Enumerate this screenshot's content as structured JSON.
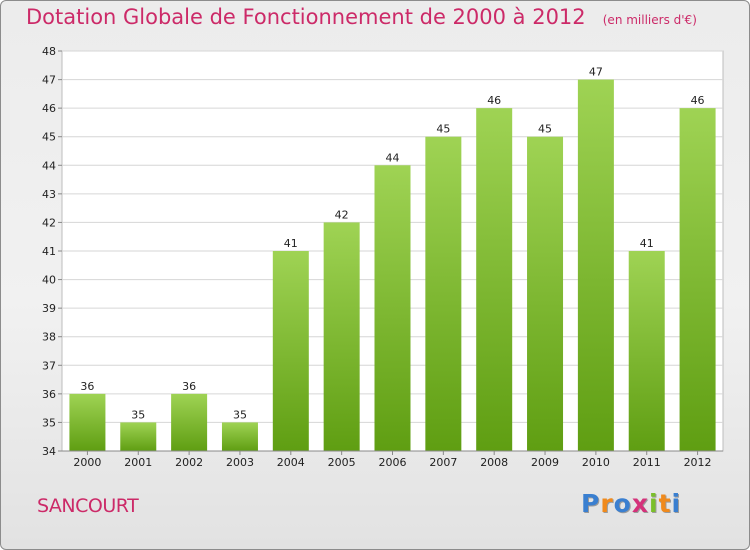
{
  "header": {
    "title": "Dotation Globale de Fonctionnement de 2000 à 2012",
    "unit": "(en milliers d'€)"
  },
  "footer": {
    "commune": "SANCOURT",
    "logo_text": "Proxiti"
  },
  "colors": {
    "title": "#cc2a68",
    "bar_top": "#9fd354",
    "bar_bottom": "#5f9e12",
    "grid": "#d6d6d6",
    "logo": [
      "#3a7fd0",
      "#f08a1c",
      "#3a7fd0",
      "#d4327a",
      "#7bbf2a",
      "#f08a1c",
      "#3a7fd0"
    ]
  },
  "chart_data": {
    "type": "bar",
    "title": "Dotation Globale de Fonctionnement de 2000 à 2012",
    "subtitle": "(en milliers d'€)",
    "categories": [
      "2000",
      "2001",
      "2002",
      "2003",
      "2004",
      "2005",
      "2006",
      "2007",
      "2008",
      "2009",
      "2010",
      "2011",
      "2012"
    ],
    "values": [
      36,
      35,
      36,
      35,
      41,
      42,
      44,
      45,
      46,
      45,
      47,
      41,
      46
    ],
    "ylim": [
      34,
      48
    ],
    "yticks": [
      34,
      35,
      36,
      37,
      38,
      39,
      40,
      41,
      42,
      43,
      44,
      45,
      46,
      47,
      48
    ],
    "grid": true,
    "data_labels": true,
    "xlabel": "",
    "ylabel": ""
  }
}
